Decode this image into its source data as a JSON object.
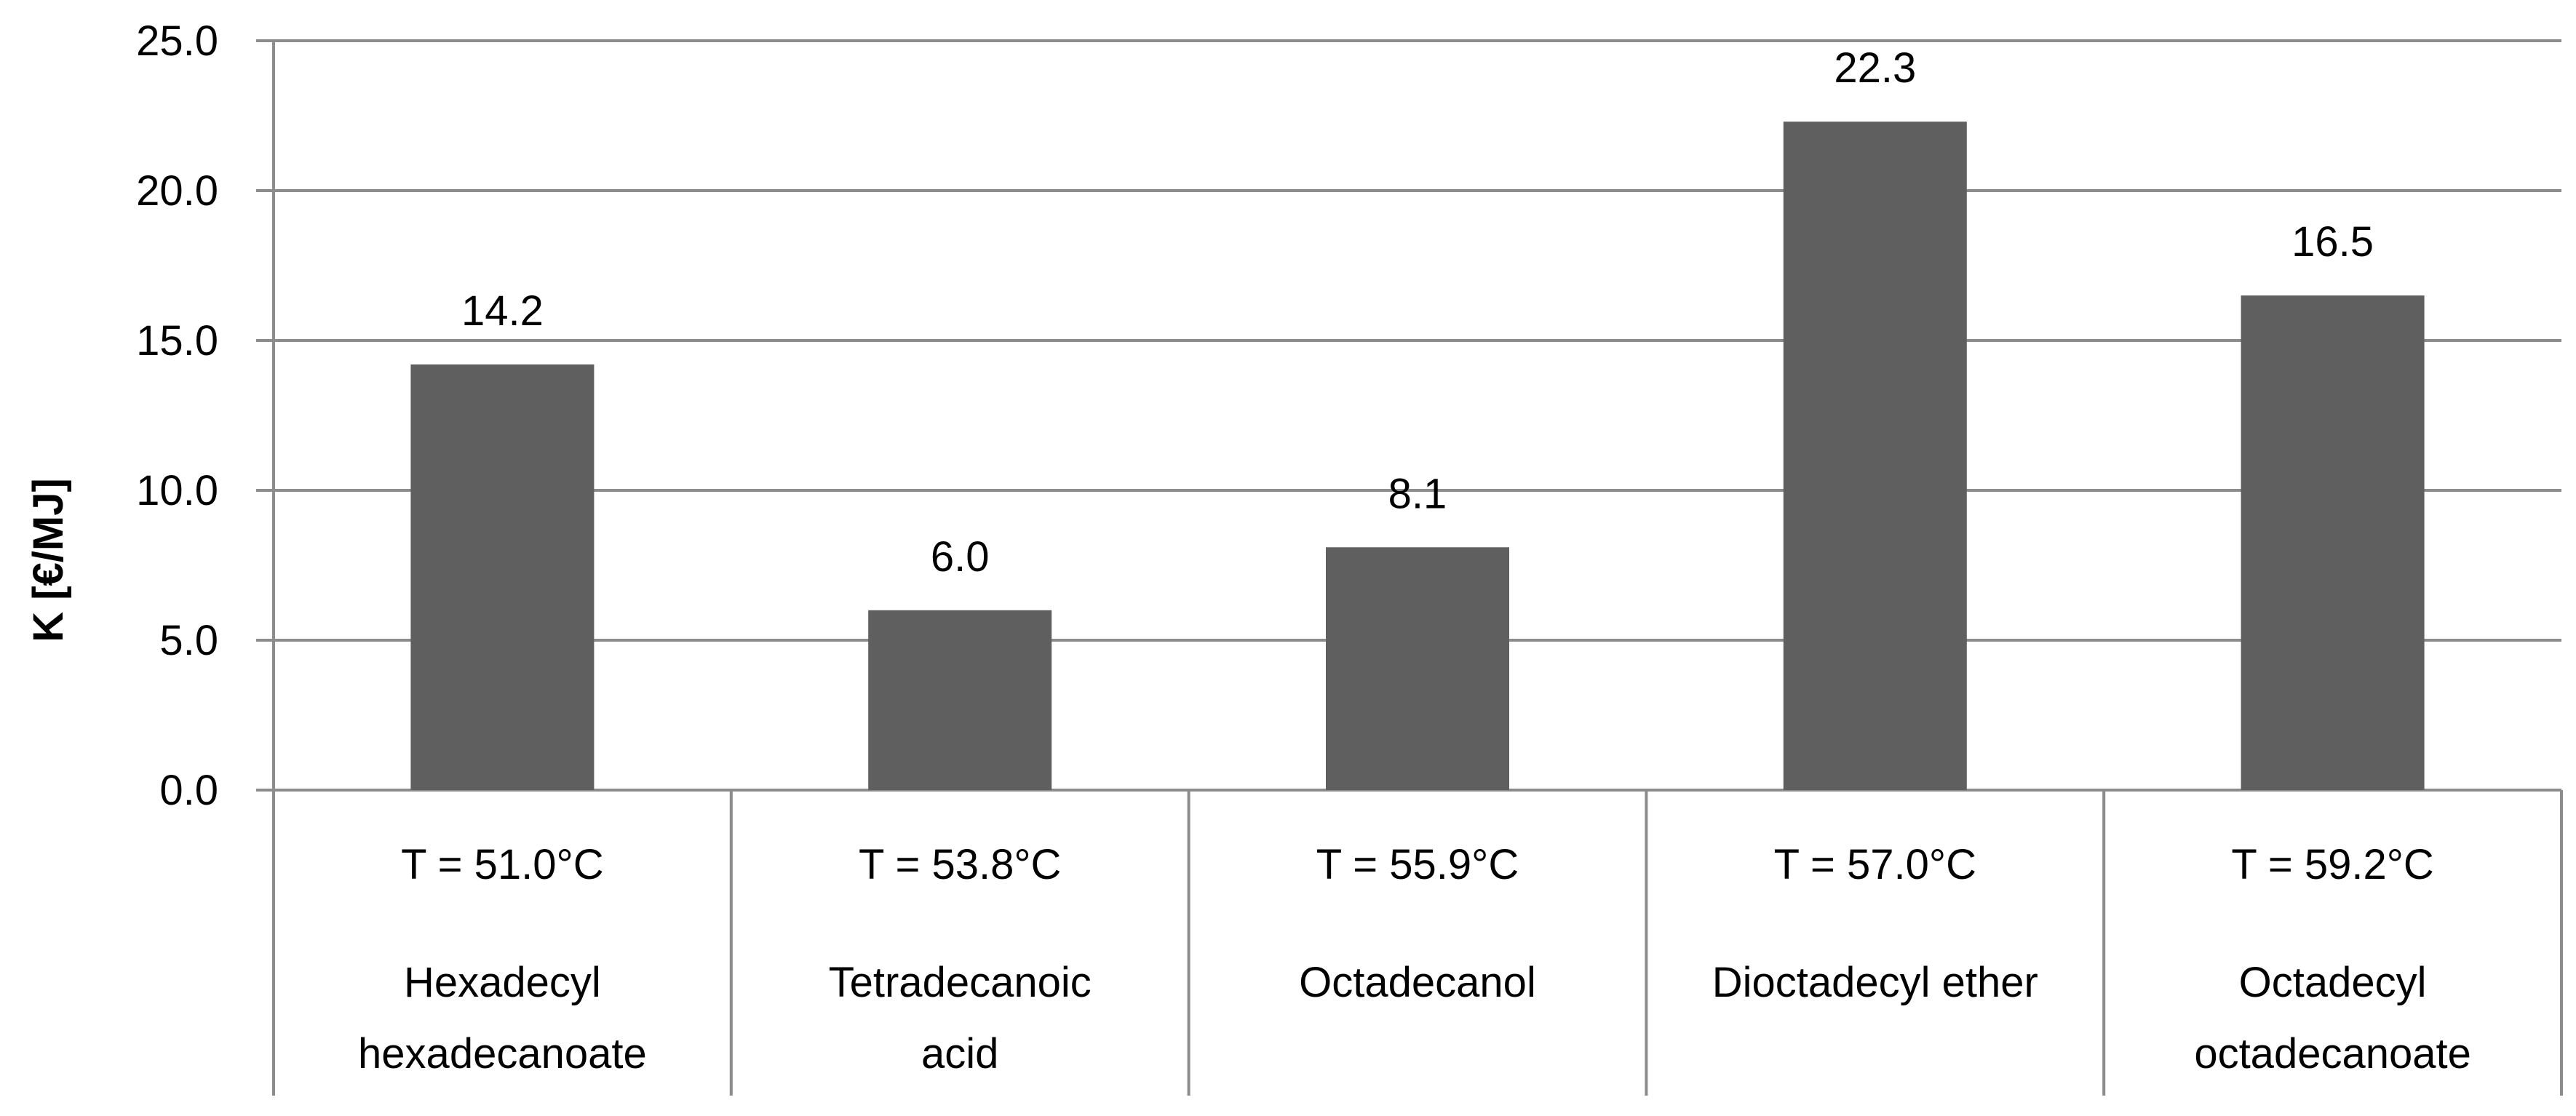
{
  "chart_data": {
    "type": "bar",
    "title": "",
    "xlabel": "",
    "ylabel": "K [€/MJ]",
    "ylim": [
      0,
      25
    ],
    "yticks": [
      0,
      5,
      10,
      15,
      20,
      25
    ],
    "ytick_labels": [
      "0.0",
      "5.0",
      "10.0",
      "15.0",
      "20.0",
      "25.0"
    ],
    "grid": true,
    "legend": "none",
    "categories": [
      {
        "temperature": "T = 51.0°C",
        "name_lines": [
          "Hexadecyl",
          "hexadecanoate"
        ]
      },
      {
        "temperature": "T = 53.8°C",
        "name_lines": [
          "Tetradecanoic",
          "acid"
        ]
      },
      {
        "temperature": "T = 55.9°C",
        "name_lines": [
          "Octadecanol"
        ]
      },
      {
        "temperature": "T = 57.0°C",
        "name_lines": [
          "Dioctadecyl ether"
        ]
      },
      {
        "temperature": "T = 59.2°C",
        "name_lines": [
          "Octadecyl",
          "octadecanoate"
        ]
      }
    ],
    "values": [
      14.2,
      6.0,
      8.1,
      22.3,
      16.5
    ],
    "data_labels": [
      "14.2",
      "6.0",
      "8.1",
      "22.3",
      "16.5"
    ],
    "colors": {
      "bar": "#5f5f5f",
      "grid": "#8c8c8c",
      "axis": "#8c8c8c",
      "text": "#000000"
    }
  }
}
